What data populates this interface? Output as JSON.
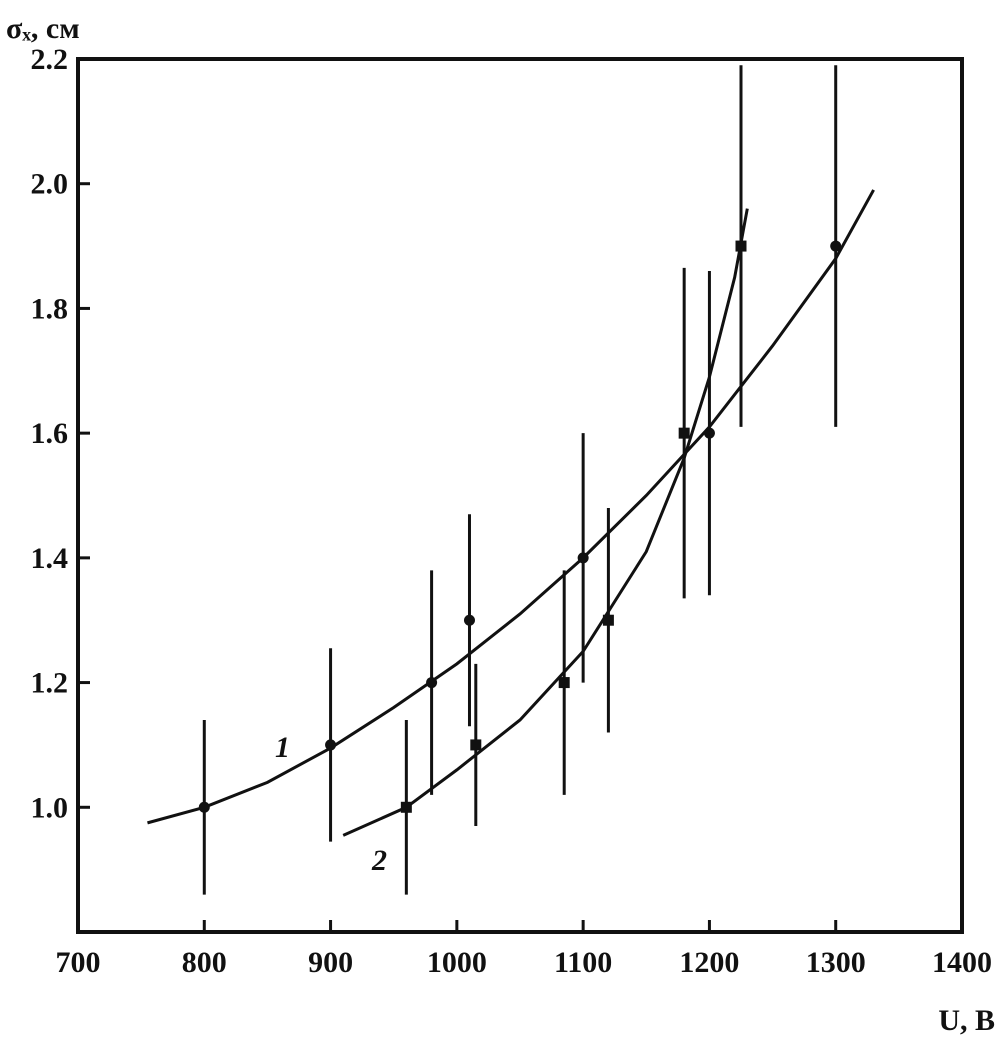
{
  "chart_data": {
    "type": "scatter",
    "x_label": "U, В",
    "y_label": "σₓ, см",
    "xlim": [
      700,
      1400
    ],
    "xticks": [
      700,
      800,
      900,
      1000,
      1100,
      1200,
      1300,
      1400
    ],
    "ylim": [
      0.8,
      2.2
    ],
    "yticks": [
      {
        "value": 1.0,
        "label": "1.0"
      },
      {
        "value": 1.2,
        "label": "1.2"
      },
      {
        "value": 1.4,
        "label": "1.4"
      },
      {
        "value": 1.6,
        "label": "1.6"
      },
      {
        "value": 1.8,
        "label": "1.8"
      },
      {
        "value": 2.0,
        "label": "2.0"
      },
      {
        "value": 2.2,
        "label": "2.2"
      }
    ],
    "color": "#111111",
    "series": [
      {
        "name": "1",
        "marker": "circle",
        "x": [
          800,
          900,
          980,
          1010,
          1100,
          1200,
          1300
        ],
        "values": [
          1.0,
          1.1,
          1.2,
          1.3,
          1.4,
          1.6,
          1.9
        ],
        "errors": [
          0.14,
          0.155,
          0.18,
          0.17,
          0.2,
          0.26,
          0.29
        ],
        "fit_x": [
          755,
          800,
          850,
          900,
          950,
          1000,
          1050,
          1100,
          1150,
          1200,
          1250,
          1300,
          1330
        ],
        "fit_y": [
          0.975,
          1.0,
          1.04,
          1.095,
          1.16,
          1.23,
          1.31,
          1.4,
          1.5,
          1.61,
          1.74,
          1.88,
          1.99
        ]
      },
      {
        "name": "2",
        "marker": "square",
        "x": [
          960,
          1015,
          1085,
          1120,
          1180,
          1225
        ],
        "values": [
          1.0,
          1.1,
          1.2,
          1.3,
          1.6,
          1.9
        ],
        "errors": [
          0.14,
          0.13,
          0.18,
          0.18,
          0.265,
          0.29
        ],
        "fit_x": [
          910,
          960,
          1000,
          1050,
          1100,
          1150,
          1180,
          1200,
          1220,
          1230
        ],
        "fit_y": [
          0.955,
          1.0,
          1.06,
          1.14,
          1.25,
          1.41,
          1.56,
          1.69,
          1.85,
          1.96
        ]
      }
    ]
  }
}
